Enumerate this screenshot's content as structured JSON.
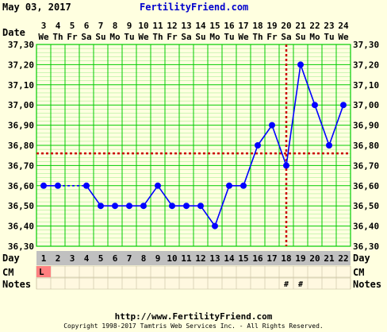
{
  "header": {
    "date": "May 03, 2017",
    "brand": "FertilityFriend.com",
    "date_label": "Date"
  },
  "footer": {
    "url": "http://www.FertilityFriend.com",
    "copyright": "Copyright 1998-2017 Tamtris Web Services Inc. - All Rights Reserved."
  },
  "row_labels": {
    "day": "Day",
    "cm": "CM",
    "notes": "Notes"
  },
  "colors": {
    "background": "#ffffe0",
    "grid": "#00cc00",
    "line": "#0000ff",
    "marker": "#0000ff",
    "coverline": "#cc0000",
    "ovulation_line": "#cc0000",
    "day_row": "#c0c0c0",
    "cm_highlight": "#ff8080"
  },
  "chart_data": {
    "type": "line",
    "ylim": [
      36.3,
      37.3
    ],
    "yticks": [
      "37,30",
      "37,20",
      "37,10",
      "37,00",
      "36,90",
      "36,80",
      "36,70",
      "36,60",
      "36,50",
      "36,40",
      "36,30"
    ],
    "dates": [
      "3",
      "4",
      "5",
      "6",
      "7",
      "8",
      "9",
      "10",
      "11",
      "12",
      "13",
      "14",
      "15",
      "16",
      "17",
      "18",
      "19",
      "20",
      "21",
      "22",
      "23",
      "24"
    ],
    "weekdays": [
      "We",
      "Th",
      "Fr",
      "Sa",
      "Su",
      "Mo",
      "Tu",
      "We",
      "Th",
      "Fr",
      "Sa",
      "Su",
      "Mo",
      "Tu",
      "We",
      "Th",
      "Fr",
      "Sa",
      "Su",
      "Mo",
      "Tu",
      "We"
    ],
    "cycle_days": [
      "1",
      "2",
      "3",
      "4",
      "5",
      "6",
      "7",
      "8",
      "9",
      "10",
      "11",
      "12",
      "13",
      "14",
      "15",
      "16",
      "17",
      "18",
      "19",
      "20",
      "21",
      "22"
    ],
    "temperatures": [
      36.6,
      36.6,
      null,
      36.6,
      36.5,
      36.5,
      36.5,
      36.5,
      36.6,
      36.5,
      36.5,
      36.5,
      36.4,
      36.6,
      36.6,
      36.8,
      36.9,
      36.7,
      37.2,
      37.0,
      36.8,
      37.0
    ],
    "coverline": 36.76,
    "ovulation_day": 18,
    "cm": [
      "L",
      "",
      "",
      "",
      "",
      "",
      "",
      "",
      "",
      "",
      "",
      "",
      "",
      "",
      "",
      "",
      "",
      "",
      "",
      "",
      "",
      ""
    ],
    "notes": [
      "",
      "",
      "",
      "",
      "",
      "",
      "",
      "",
      "",
      "",
      "",
      "",
      "",
      "",
      "",
      "",
      "",
      "#",
      "#",
      "",
      "",
      ""
    ]
  }
}
